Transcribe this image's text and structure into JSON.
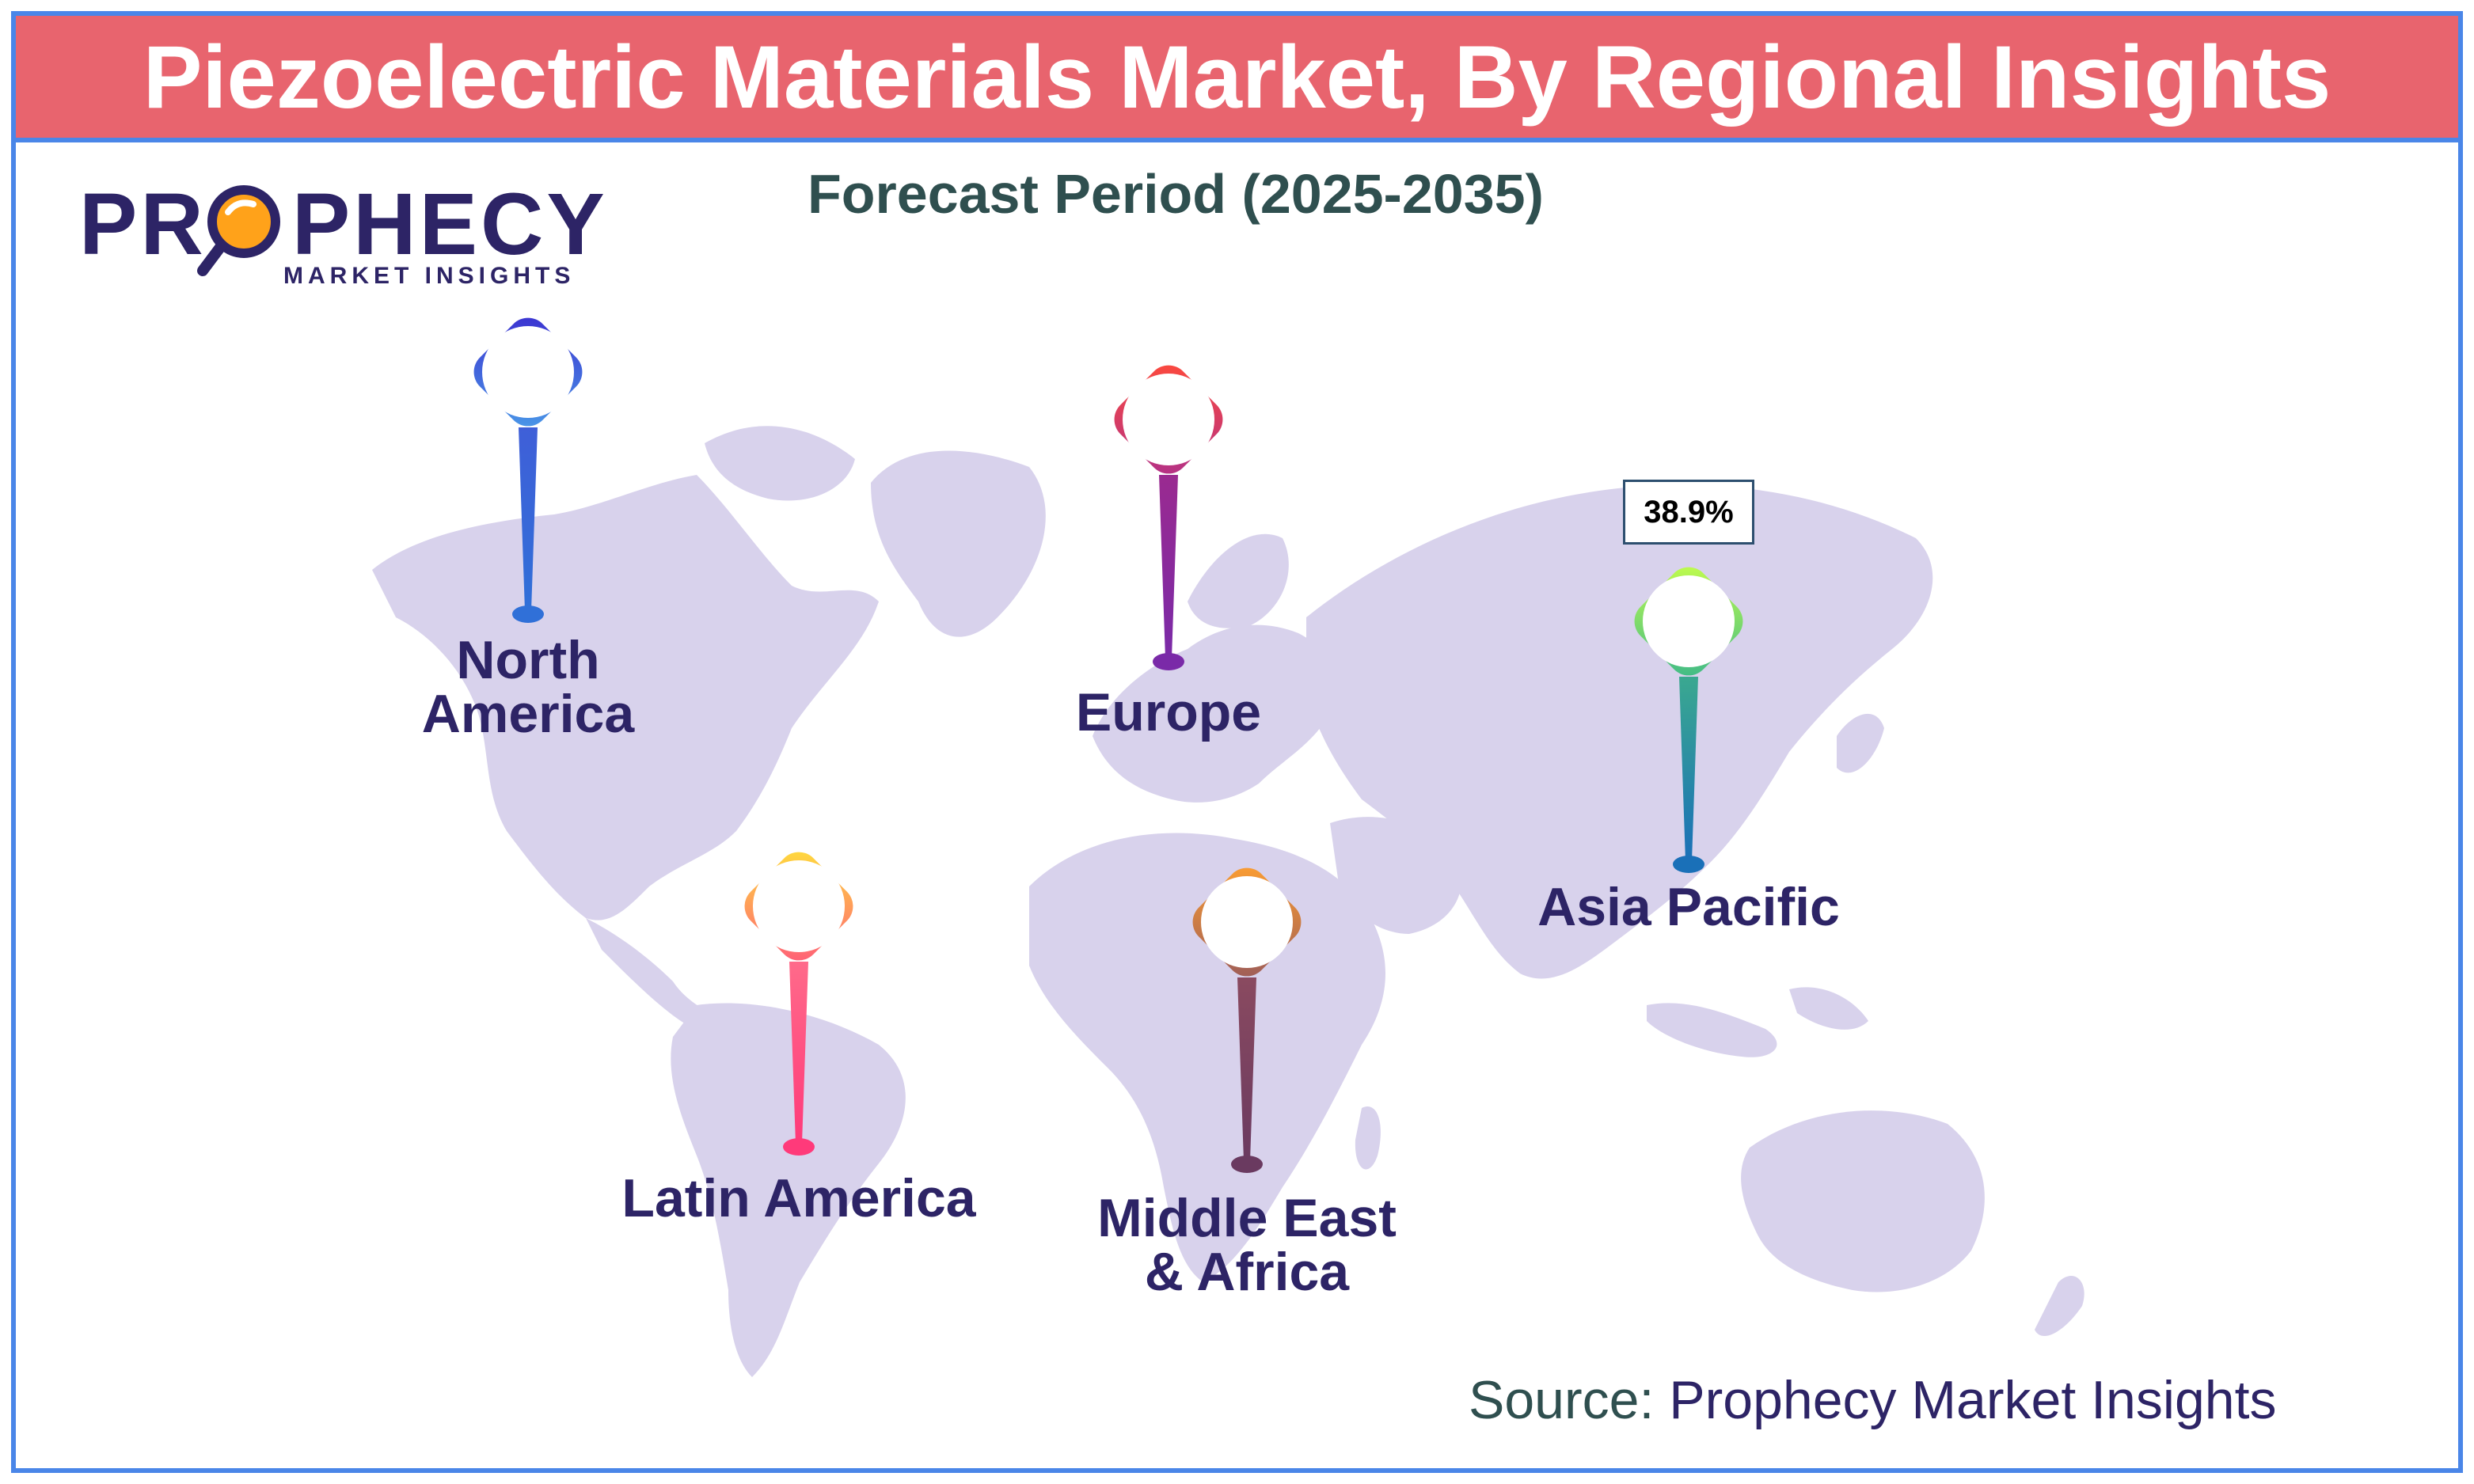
{
  "header": {
    "title": "Piezoelectric Materials Market, By Regional Insights"
  },
  "subtitle": "Forecast Period (2025-2035)",
  "logo": {
    "text_before": "PR",
    "text_after": "PHECY",
    "sub": "MARKET INSIGHTS",
    "icon": "magnifier-icon"
  },
  "regions": [
    {
      "name": "North America",
      "line1": "North",
      "line2": "America",
      "color_top": "#3b3bd6",
      "color_bottom": "#2f6fd6"
    },
    {
      "name": "Europe",
      "line1": "Europe",
      "line2": "",
      "color_top": "#e8304a",
      "color_bottom": "#7a2aa0"
    },
    {
      "name": "Asia Pacific",
      "line1": "Asia Pacific",
      "line2": "",
      "color_top": "#a6f05a",
      "color_bottom": "#1a7ab8",
      "value": "38.9%"
    },
    {
      "name": "Latin America",
      "line1": "Latin America",
      "line2": "",
      "color_top": "#ffd23a",
      "color_bottom": "#ff3a8a"
    },
    {
      "name": "Middle East & Africa",
      "line1": "Middle East",
      "line2": "& Africa",
      "color_top": "#f08a30",
      "color_bottom": "#6a3a6a"
    }
  ],
  "source": {
    "prefix": "Source: ",
    "brand": "Prophecy Market Insights"
  },
  "colors": {
    "header_bg": "#e8646e",
    "frame": "#4a86e8",
    "map": "#d8d2ec",
    "text_dark": "#2d2466"
  }
}
